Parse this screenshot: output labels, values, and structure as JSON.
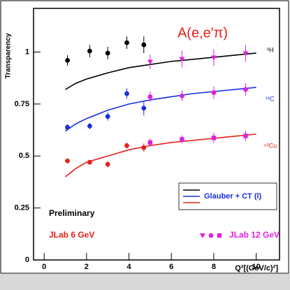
{
  "chart_data": {
    "type": "scatter",
    "ylabel": "Transparency",
    "xlabel": "Q²[(GeV/c)²]",
    "annotation": "A(e,e'π)",
    "preliminary": "Preliminary",
    "xlim": [
      -0.5,
      11.1
    ],
    "ylim": [
      0,
      1.21
    ],
    "xticks": [
      0,
      2,
      4,
      6,
      8,
      10
    ],
    "yticks": [
      0,
      0.25,
      0.5,
      0.75,
      1
    ],
    "jlab6": {
      "label": "JLab 6 GeV",
      "color": "#e8201a"
    },
    "jlab12": {
      "label": "JLab 12 GeV",
      "color": "#e020e0"
    },
    "model": {
      "label": "Glauber + CT (l)",
      "x": [
        1,
        1.5,
        2,
        3,
        4,
        5,
        6,
        7,
        8,
        9,
        10
      ]
    },
    "series": [
      {
        "name": "²H",
        "color": "#000000",
        "x": [
          1.1,
          2.15,
          3.0,
          3.9,
          4.7
        ],
        "values": [
          0.96,
          1.005,
          0.995,
          1.045,
          1.035
        ],
        "errors": [
          0.025,
          0.03,
          0.03,
          0.03,
          0.04
        ],
        "x12": [
          5,
          6.5,
          8,
          9.5
        ],
        "values12": [
          0.953,
          0.966,
          0.973,
          0.993
        ],
        "errors12": [
          0.035,
          0.04,
          0.04,
          0.04
        ],
        "model": [
          0.82,
          0.85,
          0.87,
          0.9,
          0.925,
          0.94,
          0.955,
          0.965,
          0.975,
          0.985,
          0.995
        ]
      },
      {
        "name": "¹²C",
        "color": "#1a2ee0",
        "x": [
          1.1,
          2.15,
          3.0,
          3.9,
          4.7
        ],
        "values": [
          0.638,
          0.644,
          0.69,
          0.8,
          0.73
        ],
        "errors": [
          0.015,
          0.015,
          0.02,
          0.025,
          0.035
        ],
        "x12": [
          5,
          6.5,
          8,
          9.5
        ],
        "values12": [
          0.785,
          0.789,
          0.805,
          0.82
        ],
        "errors12": [
          0.025,
          0.025,
          0.03,
          0.03
        ],
        "model": [
          0.62,
          0.655,
          0.68,
          0.72,
          0.75,
          0.77,
          0.785,
          0.8,
          0.81,
          0.82,
          0.83
        ]
      },
      {
        "name": "⁶³Cu",
        "color": "#e8201a",
        "x": [
          1.1,
          2.15,
          3.0,
          3.9,
          4.7
        ],
        "values": [
          0.4765,
          0.47,
          0.46,
          0.55,
          0.54
        ],
        "errors": [
          0.01,
          0.01,
          0.015,
          0.015,
          0.02
        ],
        "x12": [
          5,
          6.5,
          8,
          9.5
        ],
        "values12": [
          0.565,
          0.58,
          0.587,
          0.597
        ],
        "errors12": [
          0.02,
          0.02,
          0.025,
          0.025
        ],
        "model": [
          0.4,
          0.44,
          0.47,
          0.5,
          0.53,
          0.55,
          0.565,
          0.575,
          0.585,
          0.595,
          0.605
        ]
      }
    ]
  }
}
